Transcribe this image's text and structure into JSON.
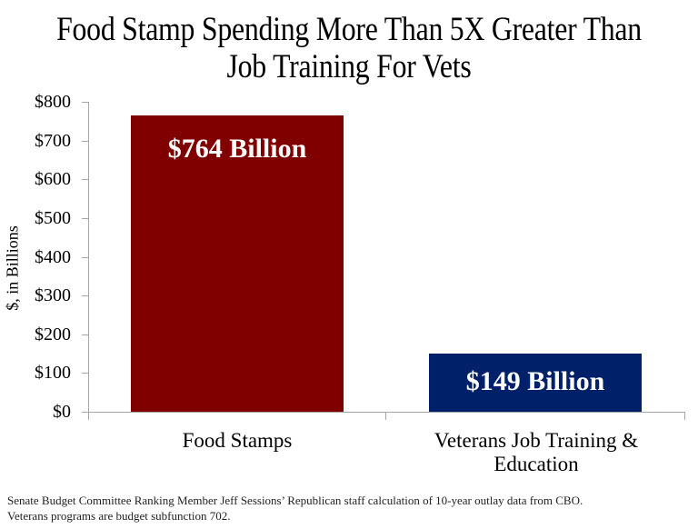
{
  "chart_data": {
    "type": "bar",
    "title": "Food Stamp Spending More Than 5X Greater Than Job Training For Vets",
    "title_lines": [
      "Food Stamp Spending More Than 5X Greater Than",
      "Job Training For Vets"
    ],
    "categories": [
      "Food Stamps",
      "Veterans Job Training & Education"
    ],
    "category_lines": [
      [
        "Food Stamps"
      ],
      [
        "Veterans Job Training &",
        "Education"
      ]
    ],
    "values": [
      764,
      149
    ],
    "data_labels": [
      "$764 Billion",
      "$149 Billion"
    ],
    "colors": [
      "#800000",
      "#00206a"
    ],
    "xlabel": "",
    "ylabel": "$, in Billions",
    "ylim": [
      0,
      800
    ],
    "yticks": [
      0,
      100,
      200,
      300,
      400,
      500,
      600,
      700,
      800
    ],
    "ytick_labels": [
      "$0",
      "$100",
      "$200",
      "$300",
      "$400",
      "$500",
      "$600",
      "$700",
      "$800"
    ],
    "grid": false,
    "legend": null
  },
  "footer": {
    "line1": "Senate Budget Committee Ranking Member Jeff Sessions’ Republican staff calculation of 10-year outlay data from CBO.",
    "line2": "Veterans programs are budget subfunction 702."
  }
}
